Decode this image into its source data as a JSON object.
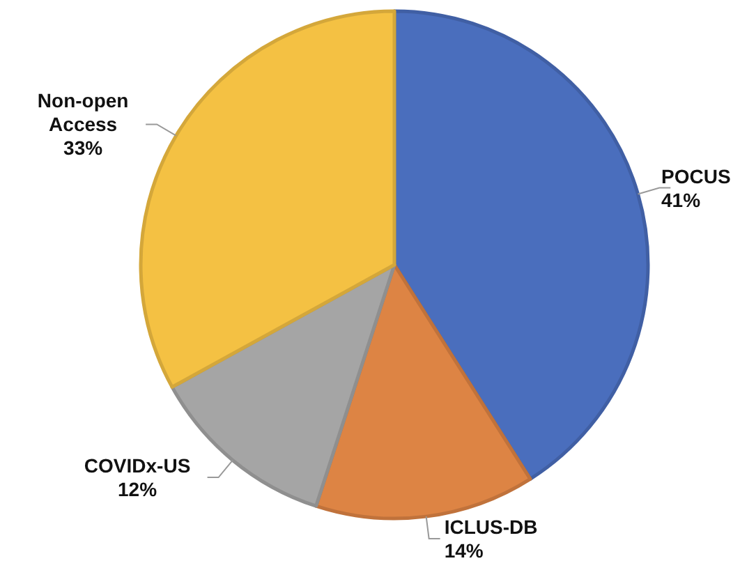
{
  "chart_data": {
    "type": "pie",
    "categories": [
      "POCUS",
      "ICLUS-DB",
      "COVIDx-US",
      "Non-open Access"
    ],
    "values": [
      41,
      14,
      12,
      33
    ],
    "colors": [
      "#4a6ebd",
      "#dd8444",
      "#a5a5a5",
      "#f4c143"
    ],
    "value_labels": [
      "41%",
      "14%",
      "12%",
      "33%"
    ]
  }
}
